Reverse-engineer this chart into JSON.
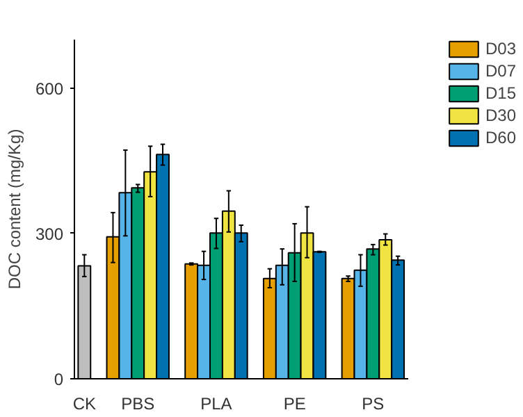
{
  "chart_data": {
    "type": "bar",
    "ylabel": "DOC content (mg/Kg)",
    "categories": [
      "CK",
      "PBS",
      "PLA",
      "PE",
      "PS"
    ],
    "series": [
      {
        "color": "#bebebe",
        "values": [
          233,
          null,
          null,
          null,
          null
        ],
        "errors": [
          [
            211,
            256
          ],
          null,
          null,
          null,
          null
        ]
      },
      {
        "name": "D03",
        "color": "#e69f00",
        "values": [
          null,
          293,
          237,
          207,
          207
        ],
        "errors": [
          null,
          [
            240,
            343
          ],
          [
            235,
            239
          ],
          [
            188,
            227
          ],
          [
            201,
            212
          ]
        ]
      },
      {
        "name": "D07",
        "color": "#56b4e9",
        "values": [
          null,
          384,
          234,
          234,
          224
        ],
        "errors": [
          null,
          [
            295,
            472
          ],
          [
            205,
            263
          ],
          [
            194,
            268
          ],
          [
            191,
            256
          ]
        ]
      },
      {
        "name": "D15",
        "color": "#009e73",
        "values": [
          null,
          394,
          301,
          260,
          268
        ],
        "errors": [
          null,
          [
            385,
            401
          ],
          [
            269,
            331
          ],
          [
            201,
            320
          ],
          [
            256,
            277
          ]
        ]
      },
      {
        "name": "D30",
        "color": "#f0e442",
        "values": [
          null,
          427,
          346,
          301,
          287
        ],
        "errors": [
          null,
          [
            376,
            480
          ],
          [
            303,
            388
          ],
          [
            250,
            355
          ],
          [
            276,
            299
          ]
        ]
      },
      {
        "name": "D60",
        "color": "#0072b2",
        "values": [
          null,
          463,
          301,
          262,
          245
        ],
        "errors": [
          null,
          [
            441,
            484
          ],
          [
            283,
            317
          ],
          [
            261,
            263
          ],
          [
            235,
            253
          ]
        ]
      }
    ],
    "ylim": [
      0,
      700
    ],
    "yticks": [
      0,
      300,
      600
    ],
    "grid": false,
    "legend": "top right"
  }
}
